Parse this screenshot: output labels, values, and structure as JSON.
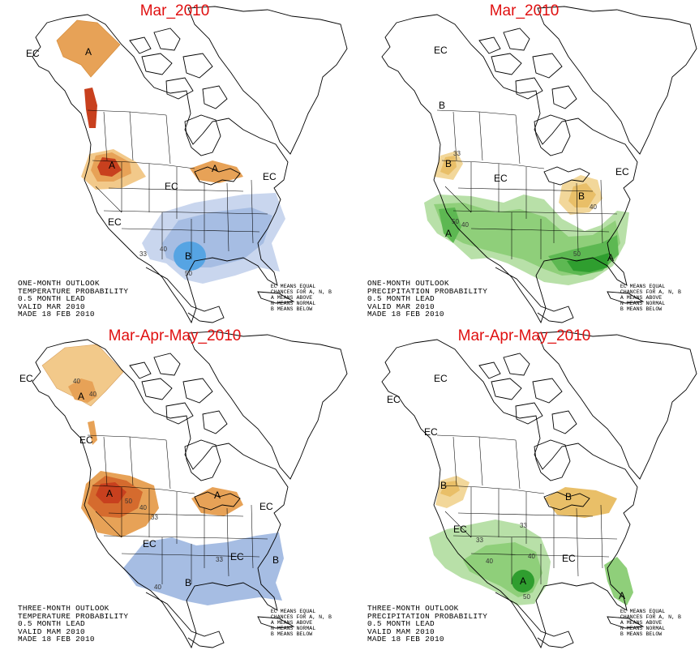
{
  "panels": [
    {
      "title": "Mar_2010",
      "caption": [
        "ONE-MONTH OUTLOOK",
        "TEMPERATURE PROBABILITY",
        "0.5 MONTH LEAD",
        "VALID MAR 2010",
        "MADE 18 FEB 2010"
      ],
      "legend": [
        "EC MEANS EQUAL",
        "CHANCES FOR A, N, B",
        "A MEANS ABOVE",
        "N MEANS NORMAL",
        "B MEANS BELOW"
      ],
      "labels": [
        "EC",
        "A",
        "A",
        "A",
        "EC",
        "EC",
        "EC",
        "B"
      ],
      "contours": [
        "40",
        "33",
        "50"
      ]
    },
    {
      "title": "Mar_2010",
      "caption": [
        "ONE-MONTH OUTLOOK",
        "PRECIPITATION PROBABILITY",
        "0.5 MONTH LEAD",
        "VALID MAR 2010",
        "MADE 18 FEB 2010"
      ],
      "legend": [
        "EC MEANS EQUAL",
        "CHANCES FOR A, N, B",
        "A MEANS ABOVE",
        "N MEANS NORMAL",
        "B MEANS BELOW"
      ],
      "labels": [
        "EC",
        "B",
        "B",
        "EC",
        "B",
        "EC",
        "A",
        "A"
      ],
      "contours": [
        "33",
        "40",
        "50",
        "40",
        "50"
      ]
    },
    {
      "title": "Mar-Apr-May_2010",
      "caption": [
        "THREE-MONTH OUTLOOK",
        "TEMPERATURE PROBABILITY",
        "0.5 MONTH LEAD",
        "VALID MAM 2010",
        "MADE 18 FEB 2010"
      ],
      "legend": [
        "EC MEANS EQUAL",
        "CHANCES FOR A, N, B",
        "A MEANS ABOVE",
        "N MEANS NORMAL",
        "B MEANS BELOW"
      ],
      "labels": [
        "EC",
        "A",
        "EC",
        "A",
        "A",
        "EC",
        "EC",
        "EC",
        "B",
        "B"
      ],
      "contours": [
        "40",
        "40",
        "50",
        "40",
        "33",
        "33",
        "40"
      ]
    },
    {
      "title": "Mar-Apr-May_2010",
      "caption": [
        "THREE-MONTH OUTLOOK",
        "PRECIPITATION PROBABILITY",
        "0.5 MONTH LEAD",
        "VALID MAM 2010",
        "MADE 18 FEB 2010"
      ],
      "legend": [
        "EC MEANS EQUAL",
        "CHANCES FOR A, N, B",
        "A MEANS ABOVE",
        "N MEANS NORMAL",
        "B MEANS BELOW"
      ],
      "labels": [
        "EC",
        "EC",
        "EC",
        "B",
        "B",
        "EC",
        "EC",
        "A",
        "A"
      ],
      "contours": [
        "33",
        "33",
        "40",
        "40",
        "50"
      ]
    }
  ],
  "colors": {
    "above_light": "#f2c98a",
    "above_mid": "#e7a257",
    "above_dark": "#d56b2e",
    "above_darkest": "#c8401e",
    "below_light": "#c9d6ee",
    "below_mid": "#a6bde3",
    "below_dark": "#7fa4d8",
    "below_darkest": "#56a4e3",
    "wet_light": "#b8e0a8",
    "wet_mid": "#8fcf7a",
    "wet_dark": "#5db852",
    "wet_darkest": "#2f9e2f",
    "dry_light": "#f2d79a",
    "dry_mid": "#e9bf68",
    "dry_dark": "#d9a047"
  }
}
